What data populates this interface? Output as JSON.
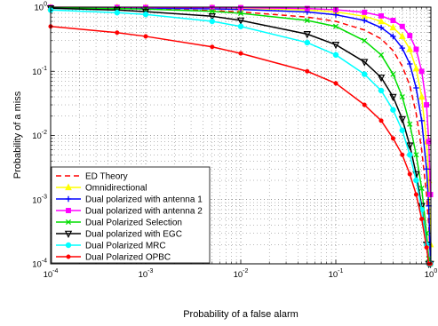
{
  "chart_data": {
    "type": "line",
    "title": "",
    "xlabel": "Probability of a false alarm",
    "ylabel": "Probability of a miss",
    "xscale": "log",
    "yscale": "log",
    "xlim": [
      0.0001,
      1
    ],
    "ylim": [
      0.0001,
      1
    ],
    "grid": true,
    "legend_position": "bottom-left",
    "x_tick_labels": [
      {
        "base": "10",
        "exp": "-4"
      },
      {
        "base": "10",
        "exp": "-3"
      },
      {
        "base": "10",
        "exp": "-2"
      },
      {
        "base": "10",
        "exp": "-1"
      },
      {
        "base": "10",
        "exp": "0"
      }
    ],
    "y_tick_labels": [
      {
        "base": "10",
        "exp": "-4"
      },
      {
        "base": "10",
        "exp": "-3"
      },
      {
        "base": "10",
        "exp": "-2"
      },
      {
        "base": "10",
        "exp": "-1"
      },
      {
        "base": "10",
        "exp": "0"
      }
    ],
    "series": [
      {
        "name": "ED Theory",
        "color": "#ff0000",
        "style": "dashed",
        "marker": "none",
        "x": [
          0.0001,
          0.0005,
          0.001,
          0.005,
          0.01,
          0.05,
          0.1,
          0.2,
          0.3,
          0.4,
          0.5,
          0.6,
          0.7,
          0.8,
          0.9,
          0.95,
          0.99
        ],
        "y": [
          0.98,
          0.955,
          0.94,
          0.88,
          0.84,
          0.7,
          0.6,
          0.44,
          0.32,
          0.21,
          0.12,
          0.06,
          0.022,
          0.006,
          0.0012,
          0.0004,
          0.00011
        ]
      },
      {
        "name": "Omnidirectional",
        "color": "#ffff00",
        "style": "solid",
        "marker": "triangle-up",
        "x": [
          0.0001,
          0.0005,
          0.001,
          0.005,
          0.01,
          0.05,
          0.1,
          0.2,
          0.3,
          0.4,
          0.5,
          0.6,
          0.7,
          0.8,
          0.9,
          0.95,
          0.99
        ],
        "y": [
          0.995,
          0.992,
          0.99,
          0.975,
          0.96,
          0.9,
          0.84,
          0.72,
          0.6,
          0.48,
          0.35,
          0.22,
          0.11,
          0.04,
          0.008,
          0.002,
          0.0002
        ]
      },
      {
        "name": "Dual polarized with antenna 1",
        "color": "#0000ff",
        "style": "solid",
        "marker": "plus",
        "x": [
          0.0001,
          0.0005,
          0.001,
          0.005,
          0.01,
          0.05,
          0.1,
          0.2,
          0.3,
          0.4,
          0.5,
          0.6,
          0.7,
          0.8,
          0.9,
          0.95,
          0.99
        ],
        "y": [
          0.99,
          0.98,
          0.97,
          0.94,
          0.92,
          0.84,
          0.76,
          0.62,
          0.48,
          0.35,
          0.23,
          0.13,
          0.055,
          0.017,
          0.003,
          0.0008,
          0.0001
        ]
      },
      {
        "name": "Dual polarized with antenna 2",
        "color": "#ff00ff",
        "style": "solid",
        "marker": "square",
        "x": [
          0.0001,
          0.0005,
          0.001,
          0.005,
          0.01,
          0.05,
          0.1,
          0.2,
          0.3,
          0.4,
          0.5,
          0.6,
          0.7,
          0.8,
          0.9,
          0.95,
          0.99
        ],
        "y": [
          0.995,
          0.993,
          0.99,
          0.985,
          0.98,
          0.95,
          0.91,
          0.83,
          0.73,
          0.62,
          0.5,
          0.36,
          0.22,
          0.1,
          0.03,
          0.008,
          0.0012
        ]
      },
      {
        "name": "Dual Polarized Selection",
        "color": "#00dd00",
        "style": "solid",
        "marker": "x",
        "x": [
          0.0001,
          0.0005,
          0.001,
          0.005,
          0.01,
          0.05,
          0.1,
          0.2,
          0.3,
          0.4,
          0.5,
          0.6,
          0.7,
          0.8,
          0.9,
          0.95,
          0.99
        ],
        "y": [
          0.97,
          0.95,
          0.93,
          0.86,
          0.8,
          0.62,
          0.5,
          0.3,
          0.18,
          0.09,
          0.04,
          0.015,
          0.005,
          0.0015,
          0.0003,
          0.00012,
          0.0001
        ]
      },
      {
        "name": "Dual polarized with EGC",
        "color": "#000000",
        "style": "solid",
        "marker": "triangle-down",
        "x": [
          0.0001,
          0.0005,
          0.001,
          0.005,
          0.01,
          0.05,
          0.1,
          0.2,
          0.3,
          0.4,
          0.5,
          0.6,
          0.7,
          0.8,
          0.9,
          0.95,
          0.99
        ],
        "y": [
          0.96,
          0.9,
          0.85,
          0.72,
          0.62,
          0.38,
          0.26,
          0.14,
          0.08,
          0.04,
          0.018,
          0.007,
          0.0025,
          0.0008,
          0.0002,
          0.0001,
          0.0001
        ]
      },
      {
        "name": "Dual Polarized MRC",
        "color": "#00ffff",
        "style": "solid",
        "marker": "circle",
        "x": [
          0.0001,
          0.0005,
          0.001,
          0.005,
          0.01,
          0.05,
          0.1,
          0.2,
          0.3,
          0.4,
          0.5,
          0.6,
          0.7,
          0.8,
          0.9,
          0.95,
          0.99
        ],
        "y": [
          0.9,
          0.82,
          0.77,
          0.6,
          0.5,
          0.28,
          0.18,
          0.09,
          0.05,
          0.025,
          0.012,
          0.005,
          0.002,
          0.0007,
          0.0002,
          0.0001,
          0.0001
        ]
      },
      {
        "name": "Dual Polarized OPBC",
        "color": "#ff0000",
        "style": "solid",
        "marker": "dot",
        "x": [
          0.0001,
          0.0005,
          0.001,
          0.005,
          0.01,
          0.05,
          0.1,
          0.2,
          0.3,
          0.4,
          0.5,
          0.6,
          0.7,
          0.8,
          0.9,
          0.95,
          0.99
        ],
        "y": [
          0.5,
          0.4,
          0.35,
          0.24,
          0.19,
          0.1,
          0.065,
          0.03,
          0.017,
          0.009,
          0.005,
          0.0025,
          0.0012,
          0.0005,
          0.00018,
          0.0001,
          0.0001
        ]
      }
    ]
  }
}
